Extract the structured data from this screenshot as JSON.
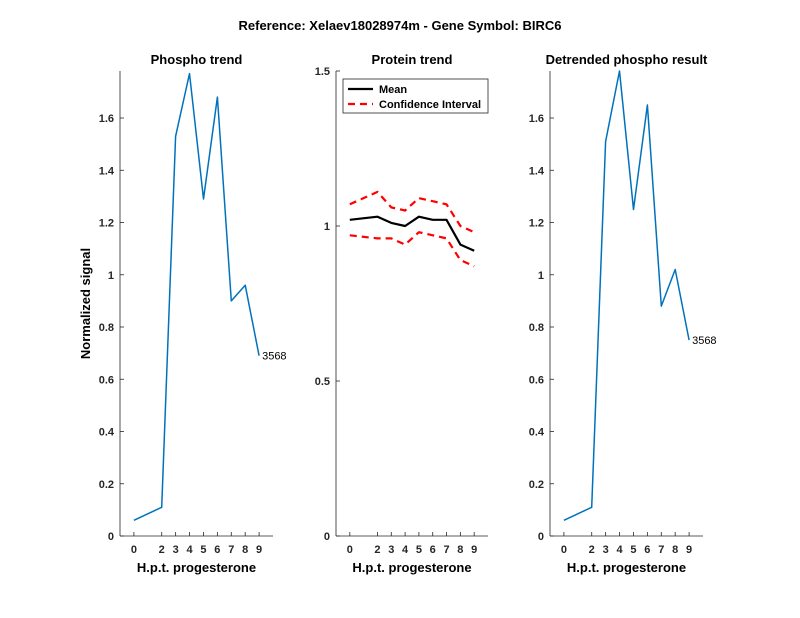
{
  "suptitle": "Reference:  Xelaev18028974m - Gene Symbol:  BIRC6",
  "colors": {
    "series": "#0072BD",
    "mean": "#000000",
    "ci": "#FF0000"
  },
  "chart_data": [
    {
      "type": "line",
      "title": "Phospho trend",
      "xlabel": "H.p.t. progesterone",
      "ylabel": "Normalized signal",
      "xticks": [
        0,
        2,
        3,
        4,
        5,
        6,
        7,
        8,
        9
      ],
      "xticklabels": [
        "0",
        "2",
        "3",
        "4",
        "5",
        "6",
        "7",
        "8",
        "9"
      ],
      "yticks": [
        0,
        0.2,
        0.4,
        0.6,
        0.8,
        1,
        1.2,
        1.4,
        1.6
      ],
      "yticklabels": [
        "0",
        "0.2",
        "0.4",
        "0.6",
        "0.8",
        "1",
        "1.2",
        "1.4",
        "1.6"
      ],
      "ylim": [
        0,
        1.78
      ],
      "series": [
        {
          "x": [
            0,
            2,
            3,
            4,
            5,
            6,
            7,
            8,
            9
          ],
          "values": [
            0.06,
            0.11,
            1.53,
            1.77,
            1.29,
            1.68,
            0.9,
            0.96,
            0.69
          ]
        }
      ],
      "annotation": "3568"
    },
    {
      "type": "line",
      "title": "Protein trend",
      "xlabel": "H.p.t. progesterone",
      "ylabel": "",
      "xticks": [
        0,
        2,
        3,
        4,
        5,
        6,
        7,
        8,
        9
      ],
      "xticklabels": [
        "0",
        "2",
        "3",
        "4",
        "5",
        "6",
        "7",
        "8",
        "9"
      ],
      "yticks": [
        0,
        0.5,
        1,
        1.5
      ],
      "yticklabels": [
        "0",
        "0.5",
        "1",
        "1.5"
      ],
      "ylim": [
        0,
        1.5
      ],
      "legend": {
        "position": "top-left",
        "items": [
          "Mean",
          "Confidence Interval"
        ]
      },
      "series": [
        {
          "name": "Mean",
          "x": [
            0,
            2,
            3,
            4,
            5,
            6,
            7,
            8,
            9
          ],
          "values": [
            1.02,
            1.03,
            1.01,
            1.0,
            1.03,
            1.02,
            1.02,
            0.94,
            0.92
          ]
        },
        {
          "name": "Confidence Interval",
          "x": [
            0,
            2,
            3,
            4,
            5,
            6,
            7,
            8,
            9
          ],
          "values": [
            1.07,
            1.11,
            1.06,
            1.05,
            1.09,
            1.08,
            1.07,
            1.0,
            0.98
          ]
        },
        {
          "x": [
            0,
            2,
            3,
            4,
            5,
            6,
            7,
            8,
            9
          ],
          "values": [
            0.97,
            0.96,
            0.96,
            0.94,
            0.98,
            0.97,
            0.96,
            0.89,
            0.87
          ]
        }
      ]
    },
    {
      "type": "line",
      "title": "Detrended phospho result",
      "xlabel": "H.p.t. progesterone",
      "ylabel": "",
      "xticks": [
        0,
        2,
        3,
        4,
        5,
        6,
        7,
        8,
        9
      ],
      "xticklabels": [
        "0",
        "2",
        "3",
        "4",
        "5",
        "6",
        "7",
        "8",
        "9"
      ],
      "yticks": [
        0,
        0.2,
        0.4,
        0.6,
        0.8,
        1,
        1.2,
        1.4,
        1.6
      ],
      "yticklabels": [
        "0",
        "0.2",
        "0.4",
        "0.6",
        "0.8",
        "1",
        "1.2",
        "1.4",
        "1.6"
      ],
      "ylim": [
        0,
        1.78
      ],
      "series": [
        {
          "x": [
            0,
            2,
            3,
            4,
            5,
            6,
            7,
            8,
            9
          ],
          "values": [
            0.06,
            0.11,
            1.51,
            1.78,
            1.25,
            1.65,
            0.88,
            1.02,
            0.75
          ]
        }
      ],
      "annotation": "3568"
    }
  ]
}
